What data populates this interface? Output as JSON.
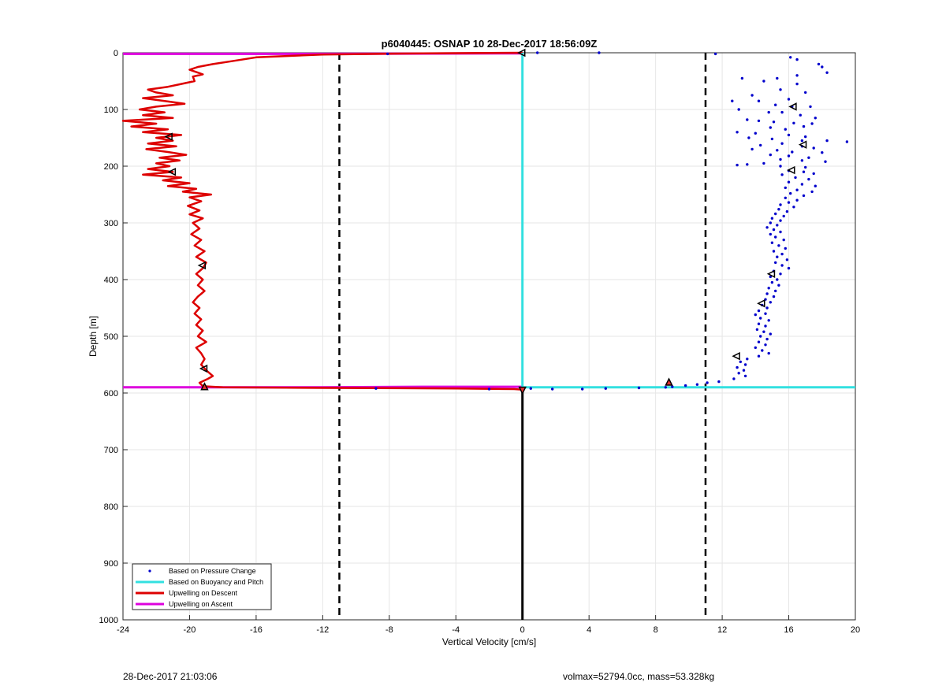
{
  "colors": {
    "pressure": "#0000cc",
    "buoyancy": "#33e0e0",
    "descent": "#dd0000",
    "ascent": "#dd00dd",
    "limits": "#000000",
    "grid": "#e6e6e6"
  },
  "footer": {
    "timestamp": "28-Dec-2017 21:03:06",
    "vol_mass": "volmax=52794.0cc, mass=53.328kg"
  },
  "chart_data": {
    "type": "scatter",
    "title": "p6040445: OSNAP 10 28-Dec-2017 18:56:09Z",
    "xlabel": "Vertical Velocity [cm/s]",
    "ylabel": "Depth [m]",
    "xlim": [
      -24,
      20
    ],
    "ylim": [
      1000,
      0
    ],
    "y_reversed": true,
    "xticks": [
      -24,
      -20,
      -16,
      -12,
      -8,
      -4,
      0,
      4,
      8,
      12,
      16,
      20
    ],
    "xtick_labels": [
      "-24",
      "-20",
      "-16",
      "-12",
      "-8",
      "-4",
      "0",
      "4",
      "8",
      "12",
      "16",
      "20"
    ],
    "yticks": [
      0,
      100,
      200,
      300,
      400,
      500,
      600,
      700,
      800,
      900,
      1000
    ],
    "ytick_labels": [
      "0",
      "100",
      "200",
      "300",
      "400",
      "500",
      "600",
      "700",
      "800",
      "900",
      "1000"
    ],
    "grid": true,
    "legend_position": "bottom-left",
    "legend": [
      {
        "label": "Based on Pressure Change",
        "style": "dot",
        "color": "#0000cc"
      },
      {
        "label": "Based on Buoyancy and Pitch",
        "style": "line",
        "color": "#33e0e0"
      },
      {
        "label": "Upwelling on Descent",
        "style": "line",
        "color": "#dd0000"
      },
      {
        "label": "Upwelling on Ascent",
        "style": "line",
        "color": "#dd00dd"
      }
    ],
    "vertical_limits": [
      -11,
      11
    ],
    "zero_line": {
      "x": 0,
      "y_from": 593,
      "y_to": 1000
    },
    "series": [
      {
        "name": "Based on Pressure Change",
        "kind": "scatter",
        "points": [
          [
            16.1,
            8
          ],
          [
            16.5,
            12
          ],
          [
            17.8,
            20
          ],
          [
            18.0,
            25
          ],
          [
            18.3,
            35
          ],
          [
            16.5,
            40
          ],
          [
            13.2,
            45
          ],
          [
            14.5,
            50
          ],
          [
            15.3,
            45
          ],
          [
            16.5,
            55
          ],
          [
            15.5,
            65
          ],
          [
            17.0,
            70
          ],
          [
            13.8,
            75
          ],
          [
            16.0,
            82
          ],
          [
            14.2,
            85
          ],
          [
            12.6,
            85
          ],
          [
            15.2,
            92
          ],
          [
            16.2,
            95
          ],
          [
            17.3,
            95
          ],
          [
            13.0,
            100
          ],
          [
            14.8,
            105
          ],
          [
            15.6,
            105
          ],
          [
            16.7,
            110
          ],
          [
            17.6,
            115
          ],
          [
            13.5,
            118
          ],
          [
            14.2,
            120
          ],
          [
            15.1,
            122
          ],
          [
            16.3,
            124
          ],
          [
            17.4,
            125
          ],
          [
            16.9,
            130
          ],
          [
            14.9,
            132
          ],
          [
            15.8,
            135
          ],
          [
            12.9,
            140
          ],
          [
            14.0,
            142
          ],
          [
            16.0,
            145
          ],
          [
            17.0,
            148
          ],
          [
            13.6,
            150
          ],
          [
            15.0,
            152
          ],
          [
            16.8,
            155
          ],
          [
            18.3,
            155
          ],
          [
            19.5,
            157
          ],
          [
            15.6,
            160
          ],
          [
            14.3,
            163
          ],
          [
            16.8,
            165
          ],
          [
            17.5,
            168
          ],
          [
            13.8,
            170
          ],
          [
            15.3,
            172
          ],
          [
            16.2,
            175
          ],
          [
            18.0,
            176
          ],
          [
            14.9,
            180
          ],
          [
            16.0,
            182
          ],
          [
            17.2,
            185
          ],
          [
            15.5,
            188
          ],
          [
            16.8,
            190
          ],
          [
            18.2,
            192
          ],
          [
            14.5,
            195
          ],
          [
            13.5,
            197
          ],
          [
            12.9,
            198
          ],
          [
            15.5,
            200
          ],
          [
            17.0,
            202
          ],
          [
            16.0,
            208
          ],
          [
            16.9,
            210
          ],
          [
            17.5,
            213
          ],
          [
            15.6,
            215
          ],
          [
            16.4,
            220
          ],
          [
            17.2,
            223
          ],
          [
            16.0,
            228
          ],
          [
            16.8,
            232
          ],
          [
            17.6,
            235
          ],
          [
            15.8,
            238
          ],
          [
            16.5,
            242
          ],
          [
            17.4,
            245
          ],
          [
            16.1,
            248
          ],
          [
            16.9,
            252
          ],
          [
            15.8,
            256
          ],
          [
            16.5,
            260
          ],
          [
            16.0,
            264
          ],
          [
            15.5,
            268
          ],
          [
            16.3,
            272
          ],
          [
            15.4,
            276
          ],
          [
            15.9,
            280
          ],
          [
            15.2,
            284
          ],
          [
            15.7,
            288
          ],
          [
            15.0,
            292
          ],
          [
            15.5,
            296
          ],
          [
            14.9,
            300
          ],
          [
            15.3,
            304
          ],
          [
            14.7,
            308
          ],
          [
            15.1,
            312
          ],
          [
            15.5,
            316
          ],
          [
            14.9,
            320
          ],
          [
            15.2,
            325
          ],
          [
            15.7,
            330
          ],
          [
            15.0,
            335
          ],
          [
            15.4,
            340
          ],
          [
            15.8,
            345
          ],
          [
            15.1,
            350
          ],
          [
            15.6,
            355
          ],
          [
            15.3,
            360
          ],
          [
            15.9,
            365
          ],
          [
            15.2,
            370
          ],
          [
            15.6,
            375
          ],
          [
            16.0,
            380
          ],
          [
            15.1,
            385
          ],
          [
            15.5,
            390
          ],
          [
            14.9,
            395
          ],
          [
            15.3,
            400
          ],
          [
            15.0,
            405
          ],
          [
            15.4,
            410
          ],
          [
            14.8,
            415
          ],
          [
            15.2,
            420
          ],
          [
            14.7,
            425
          ],
          [
            15.1,
            430
          ],
          [
            14.6,
            435
          ],
          [
            14.9,
            440
          ],
          [
            14.4,
            445
          ],
          [
            14.7,
            450
          ],
          [
            14.2,
            455
          ],
          [
            14.6,
            460
          ],
          [
            14.0,
            462
          ],
          [
            14.3,
            468
          ],
          [
            14.8,
            472
          ],
          [
            14.2,
            478
          ],
          [
            14.6,
            482
          ],
          [
            14.1,
            488
          ],
          [
            14.5,
            492
          ],
          [
            14.9,
            496
          ],
          [
            14.3,
            500
          ],
          [
            14.7,
            505
          ],
          [
            14.2,
            510
          ],
          [
            14.6,
            515
          ],
          [
            14.0,
            520
          ],
          [
            14.4,
            525
          ],
          [
            14.8,
            530
          ],
          [
            14.2,
            535
          ],
          [
            13.5,
            540
          ],
          [
            13.1,
            545
          ],
          [
            13.4,
            550
          ],
          [
            12.9,
            555
          ],
          [
            13.3,
            560
          ],
          [
            13.0,
            565
          ],
          [
            13.4,
            570
          ],
          [
            12.7,
            575
          ],
          [
            11.8,
            580
          ],
          [
            11.1,
            582
          ],
          [
            10.5,
            585
          ],
          [
            9.8,
            587
          ],
          [
            9.0,
            589
          ],
          [
            8.6,
            590
          ],
          [
            7.0,
            591
          ],
          [
            5.0,
            592
          ],
          [
            3.6,
            593
          ],
          [
            1.8,
            593
          ],
          [
            0.5,
            592
          ],
          [
            -2.0,
            593
          ],
          [
            -8.8,
            592
          ],
          [
            11.6,
            2
          ],
          [
            4.6,
            0
          ],
          [
            0.9,
            0
          ],
          [
            -8.1,
            2
          ]
        ]
      },
      {
        "name": "Based on Buoyancy and Pitch",
        "kind": "line",
        "segments": [
          [
            [
              0,
              0
            ],
            [
              0,
              380
            ],
            [
              0,
              590
            ]
          ],
          [
            [
              0,
              590
            ],
            [
              5,
              590
            ],
            [
              11,
              590
            ],
            [
              20,
              590
            ]
          ]
        ]
      },
      {
        "name": "Upwelling on Descent",
        "kind": "line",
        "points": [
          [
            0,
            0
          ],
          [
            -6,
            1
          ],
          [
            -12,
            3
          ],
          [
            -16,
            8
          ],
          [
            -17.5,
            15
          ],
          [
            -18.6,
            20
          ],
          [
            -19.5,
            25
          ],
          [
            -20.0,
            30
          ],
          [
            -19.2,
            38
          ],
          [
            -19.8,
            42
          ],
          [
            -19.7,
            50
          ],
          [
            -20.5,
            55
          ],
          [
            -21.3,
            60
          ],
          [
            -22.5,
            65
          ],
          [
            -22.0,
            70
          ],
          [
            -21.0,
            75
          ],
          [
            -22.8,
            80
          ],
          [
            -21.5,
            85
          ],
          [
            -20.3,
            90
          ],
          [
            -22.0,
            95
          ],
          [
            -23.0,
            100
          ],
          [
            -21.5,
            105
          ],
          [
            -22.8,
            110
          ],
          [
            -21.0,
            115
          ],
          [
            -24,
            120
          ],
          [
            -22.0,
            125
          ],
          [
            -23.5,
            130
          ],
          [
            -21.3,
            135
          ],
          [
            -22.8,
            140
          ],
          [
            -20.5,
            145
          ],
          [
            -22.0,
            150
          ],
          [
            -21.0,
            155
          ],
          [
            -22.5,
            160
          ],
          [
            -20.8,
            165
          ],
          [
            -22.6,
            170
          ],
          [
            -21.3,
            175
          ],
          [
            -20.2,
            180
          ],
          [
            -21.8,
            185
          ],
          [
            -20.6,
            190
          ],
          [
            -22.0,
            195
          ],
          [
            -21.2,
            200
          ],
          [
            -22.5,
            205
          ],
          [
            -21.0,
            210
          ],
          [
            -22.8,
            215
          ],
          [
            -20.5,
            220
          ],
          [
            -21.6,
            225
          ],
          [
            -20.0,
            230
          ],
          [
            -21.3,
            235
          ],
          [
            -19.6,
            240
          ],
          [
            -20.4,
            245
          ],
          [
            -18.7,
            250
          ],
          [
            -20.0,
            255
          ],
          [
            -19.3,
            262
          ],
          [
            -20.1,
            270
          ],
          [
            -19.4,
            278
          ],
          [
            -20.0,
            285
          ],
          [
            -19.2,
            292
          ],
          [
            -19.8,
            300
          ],
          [
            -19.4,
            310
          ],
          [
            -19.9,
            320
          ],
          [
            -19.3,
            330
          ],
          [
            -19.7,
            340
          ],
          [
            -19.1,
            350
          ],
          [
            -19.6,
            360
          ],
          [
            -19.0,
            370
          ],
          [
            -19.2,
            380
          ],
          [
            -19.6,
            390
          ],
          [
            -19.2,
            400
          ],
          [
            -19.5,
            410
          ],
          [
            -19.1,
            420
          ],
          [
            -19.5,
            430
          ],
          [
            -19.8,
            440
          ],
          [
            -19.4,
            450
          ],
          [
            -19.7,
            460
          ],
          [
            -19.3,
            470
          ],
          [
            -19.6,
            480
          ],
          [
            -19.2,
            490
          ],
          [
            -19.5,
            500
          ],
          [
            -19.0,
            510
          ],
          [
            -19.6,
            520
          ],
          [
            -19.3,
            530
          ],
          [
            -19.1,
            540
          ],
          [
            -19.3,
            550
          ],
          [
            -19.0,
            560
          ],
          [
            -18.6,
            570
          ],
          [
            -18.9,
            575
          ],
          [
            -19.4,
            582
          ],
          [
            -19.2,
            588
          ],
          [
            -18.0,
            590
          ],
          [
            -12,
            591
          ],
          [
            -4,
            592
          ],
          [
            -0.5,
            593
          ],
          [
            0,
            594
          ]
        ]
      },
      {
        "name": "Upwelling on Ascent",
        "kind": "line",
        "segments": [
          [
            [
              -24,
              2
            ],
            [
              -12,
              2
            ],
            [
              0,
              1
            ]
          ],
          [
            [
              -24,
              590
            ],
            [
              -12,
              590
            ],
            [
              -6,
              589
            ],
            [
              0,
              589
            ]
          ]
        ]
      }
    ],
    "markers": [
      {
        "type": "triangle-left",
        "points": [
          [
            0,
            0
          ],
          [
            -21.2,
            148
          ],
          [
            -21.0,
            210
          ],
          [
            -19.2,
            375
          ],
          [
            -19.1,
            557
          ],
          [
            16.3,
            95
          ],
          [
            16.9,
            162
          ],
          [
            16.2,
            207
          ],
          [
            15.0,
            390
          ],
          [
            14.4,
            442
          ],
          [
            12.9,
            535
          ]
        ]
      },
      {
        "type": "triangle-up",
        "points": [
          [
            -19.1,
            590
          ],
          [
            8.8,
            582
          ]
        ]
      },
      {
        "type": "triangle-down",
        "points": [
          [
            0,
            594
          ]
        ]
      }
    ]
  }
}
